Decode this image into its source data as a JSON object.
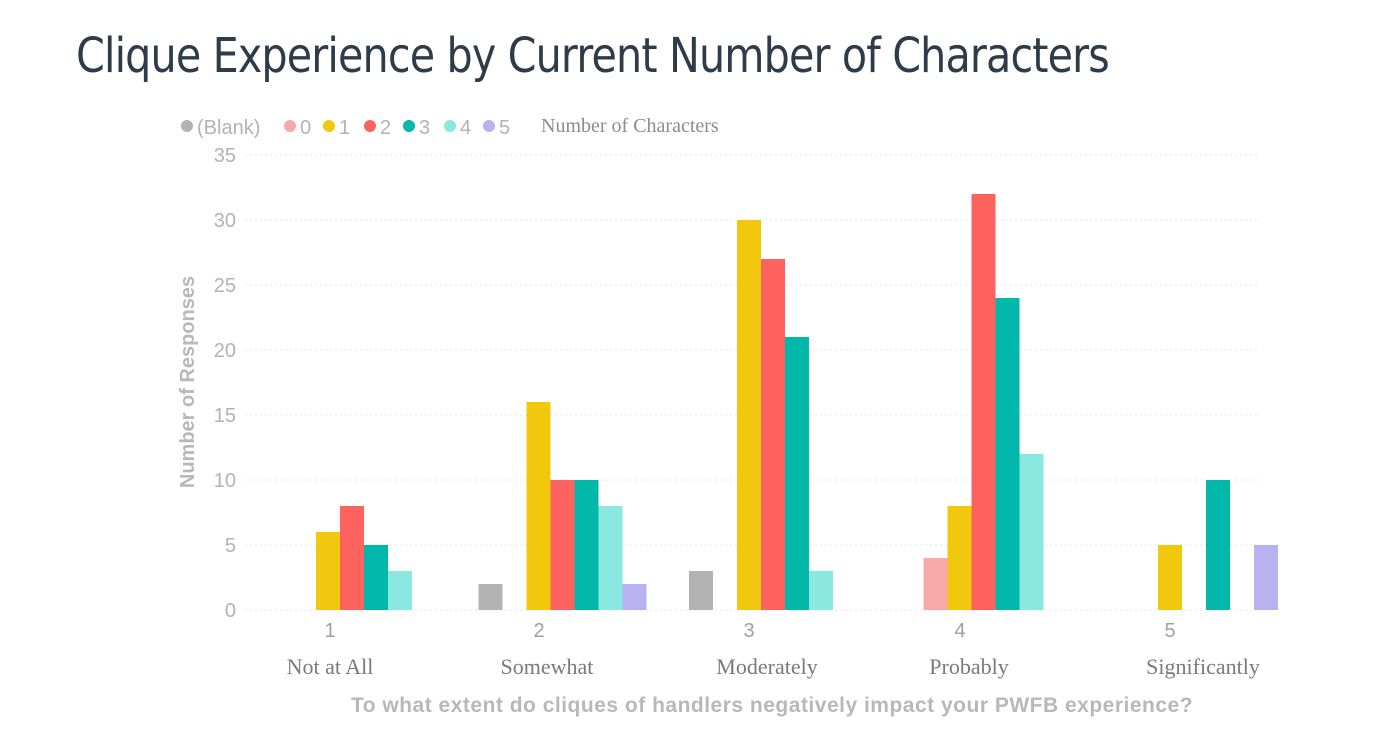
{
  "page": {
    "title": "Clique Experience by Current Number of Characters"
  },
  "chart_data": {
    "type": "bar",
    "title": "Clique Experience by Current Number of Characters",
    "legend_title": "Number of Characters",
    "legend_position": "top-left",
    "xlabel": "To what extent do cliques of handlers negatively impact your PWFB experience?",
    "ylabel": "Number of Responses",
    "ylim": [
      0,
      35
    ],
    "yticks": [
      0,
      5,
      10,
      15,
      20,
      25,
      30,
      35
    ],
    "grid": true,
    "categories": [
      "1",
      "2",
      "3",
      "4",
      "5"
    ],
    "category_labels": [
      "Not at All",
      "Somewhat",
      "Moderately",
      "Probably",
      "Significantly"
    ],
    "series": [
      {
        "name": "(Blank)",
        "color": "#b3b3b3",
        "values": [
          0,
          2,
          3,
          0,
          0
        ]
      },
      {
        "name": "0",
        "color": "#f7a8a8",
        "values": [
          0,
          0,
          0,
          4,
          0
        ]
      },
      {
        "name": "1",
        "color": "#f2c80f",
        "values": [
          6,
          16,
          30,
          8,
          5
        ]
      },
      {
        "name": "2",
        "color": "#fd625e",
        "values": [
          8,
          10,
          27,
          32,
          0
        ]
      },
      {
        "name": "3",
        "color": "#01b8aa",
        "values": [
          5,
          10,
          21,
          24,
          10
        ]
      },
      {
        "name": "4",
        "color": "#8ae8e0",
        "values": [
          3,
          8,
          3,
          12,
          0
        ]
      },
      {
        "name": "5",
        "color": "#b8b3f0",
        "values": [
          0,
          2,
          0,
          0,
          5
        ]
      }
    ]
  }
}
